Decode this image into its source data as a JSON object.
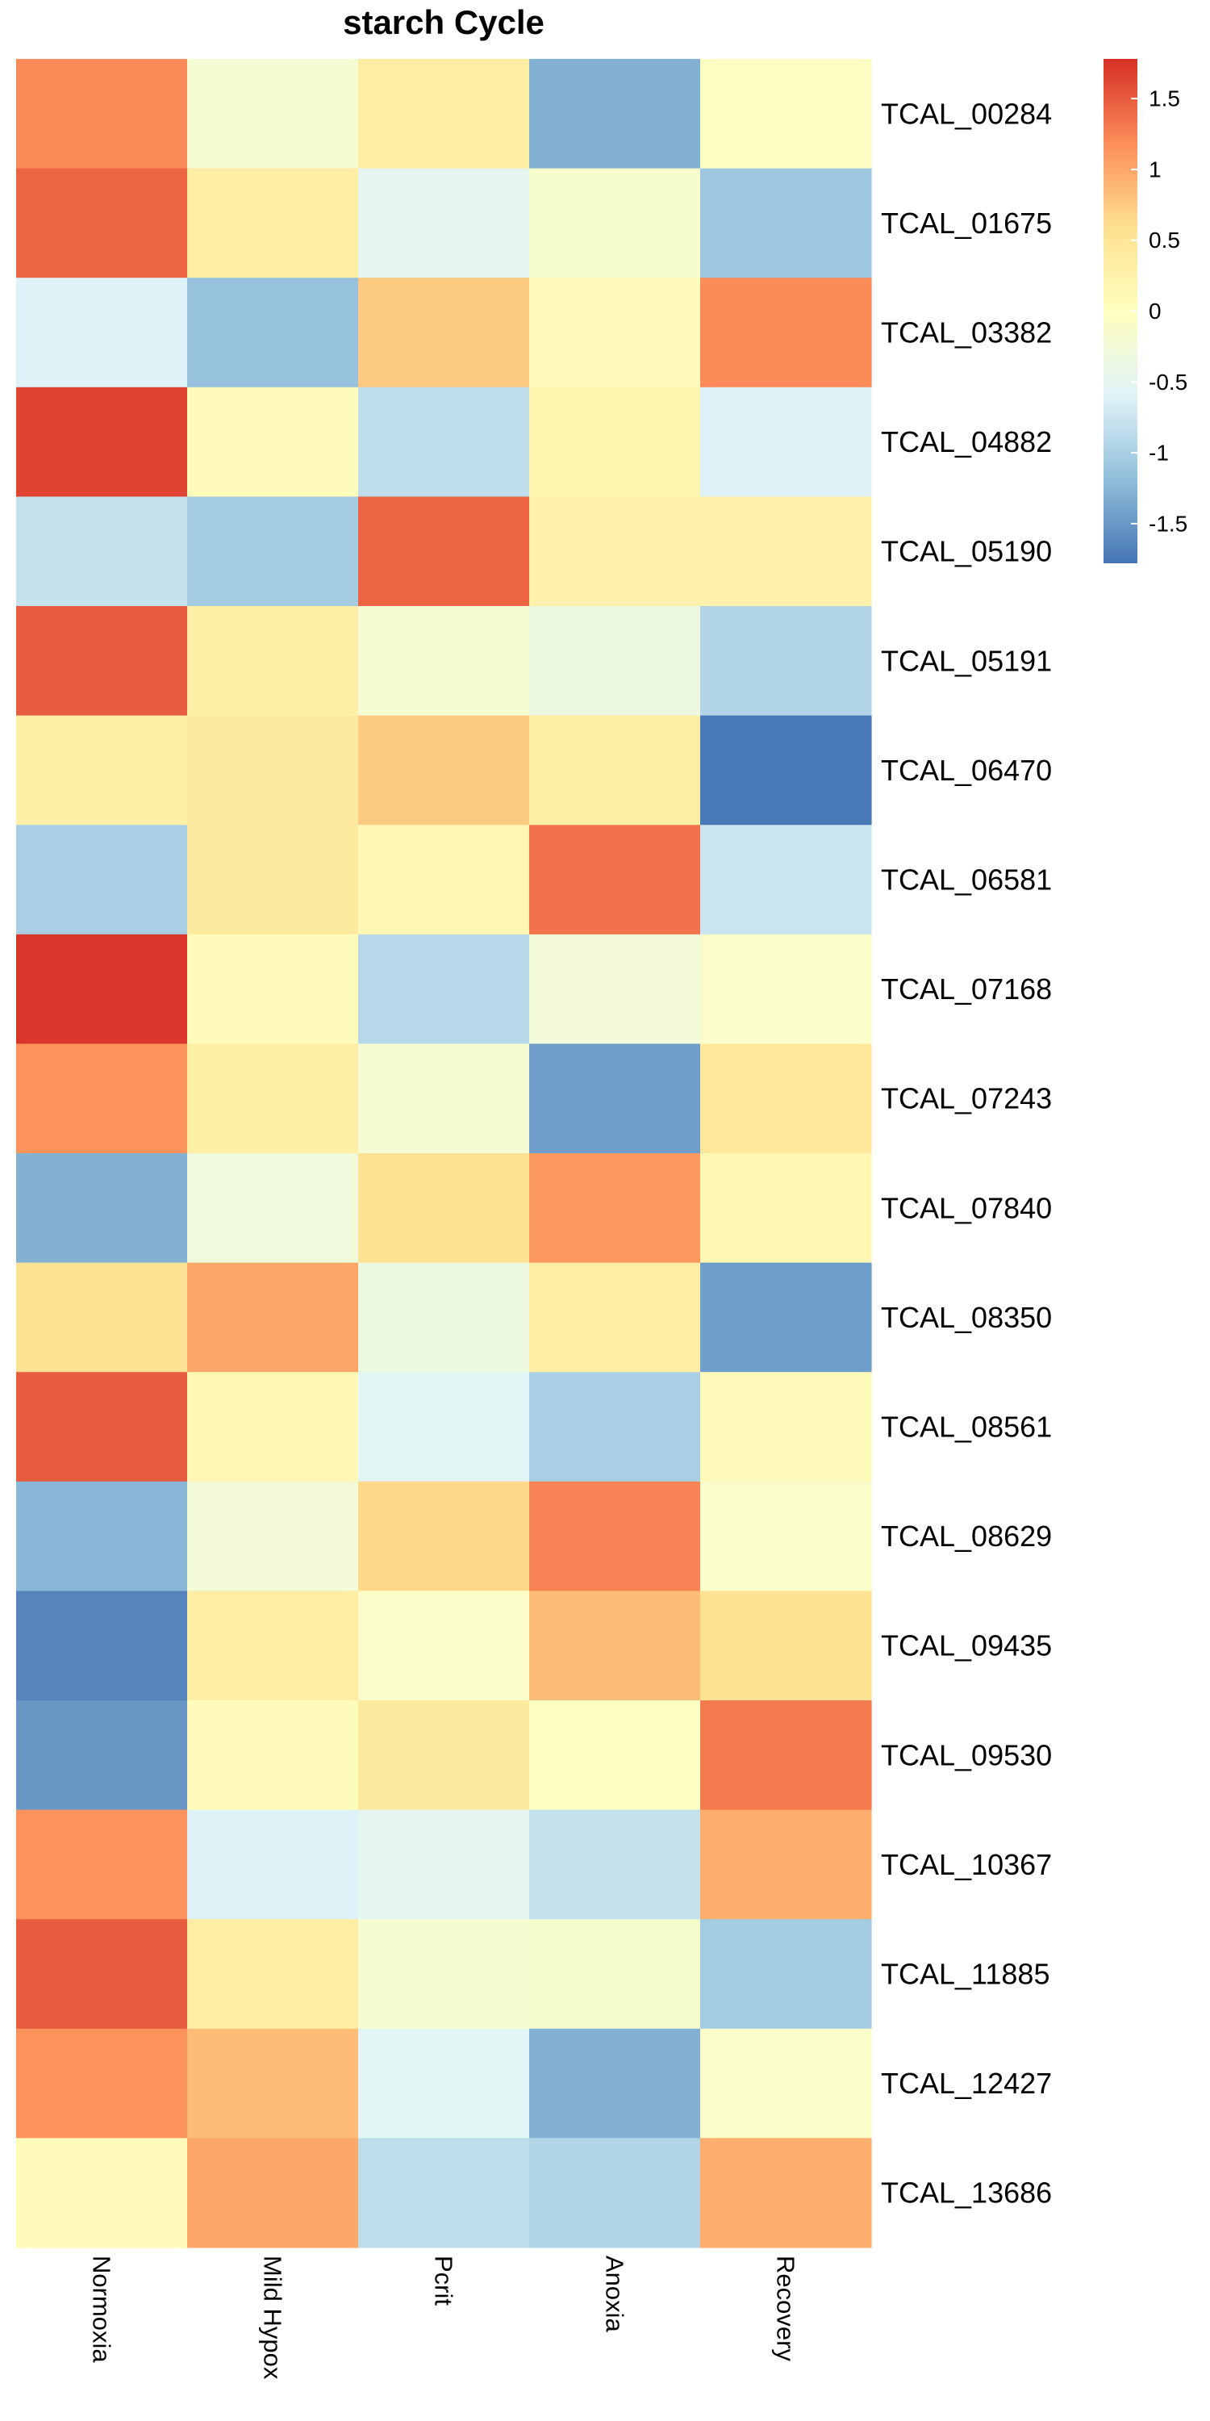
{
  "chart_data": {
    "type": "heatmap",
    "title": "starch Cycle",
    "columns": [
      "Normoxia",
      "Mild Hypox",
      "Pcrit",
      "Anoxia",
      "Recovery"
    ],
    "rows": [
      "TCAL_00284",
      "TCAL_01675",
      "TCAL_03382",
      "TCAL_04882",
      "TCAL_05190",
      "TCAL_05191",
      "TCAL_06470",
      "TCAL_06581",
      "TCAL_07168",
      "TCAL_07243",
      "TCAL_07840",
      "TCAL_08350",
      "TCAL_08561",
      "TCAL_08629",
      "TCAL_09435",
      "TCAL_09530",
      "TCAL_10367",
      "TCAL_11885",
      "TCAL_12427",
      "TCAL_13686"
    ],
    "values": [
      [
        1.2,
        -0.2,
        0.35,
        -1.3,
        -0.05
      ],
      [
        1.45,
        0.35,
        -0.5,
        -0.15,
        -1.1
      ],
      [
        -0.6,
        -1.15,
        0.75,
        0.05,
        1.2
      ],
      [
        1.65,
        0.05,
        -0.85,
        0.2,
        -0.6
      ],
      [
        -0.8,
        -1.05,
        1.45,
        0.25,
        0.25
      ],
      [
        1.5,
        0.3,
        -0.2,
        -0.35,
        -0.95
      ],
      [
        0.3,
        0.4,
        0.75,
        0.3,
        -1.75
      ],
      [
        -1.0,
        0.4,
        0.15,
        1.35,
        -0.75
      ],
      [
        1.75,
        0.05,
        -0.9,
        -0.25,
        -0.1
      ],
      [
        1.15,
        0.3,
        -0.2,
        -1.45,
        0.45
      ],
      [
        -1.3,
        -0.3,
        0.55,
        1.1,
        0.15
      ],
      [
        0.55,
        1.0,
        -0.35,
        0.35,
        -1.45
      ],
      [
        1.5,
        0.15,
        -0.55,
        -1.0,
        0.05
      ],
      [
        -1.25,
        -0.25,
        0.65,
        1.25,
        -0.1
      ],
      [
        -1.65,
        0.35,
        -0.1,
        0.85,
        0.55
      ],
      [
        -1.5,
        0.05,
        0.4,
        -0.05,
        1.3
      ],
      [
        1.15,
        -0.6,
        -0.5,
        -0.8,
        0.95
      ],
      [
        1.5,
        0.35,
        -0.2,
        -0.15,
        -1.05
      ],
      [
        1.15,
        0.85,
        -0.55,
        -1.3,
        -0.1
      ],
      [
        0.05,
        1.0,
        -0.85,
        -0.95,
        0.95
      ]
    ],
    "colorbar": {
      "ticks": [
        "1.5",
        "1",
        "0.5",
        "0",
        "-0.5",
        "-1",
        "-1.5"
      ],
      "tick_values": [
        1.5,
        1,
        0.5,
        0,
        -0.5,
        -1,
        -1.5
      ],
      "range": [
        -1.78,
        1.78
      ],
      "colors": [
        "#4575B4",
        "#91BFDB",
        "#E0F3F8",
        "#FFFFBF",
        "#FEE090",
        "#FC8D59",
        "#D73027"
      ]
    },
    "xlabel": "",
    "ylabel": "",
    "legend_position": "top-right"
  }
}
